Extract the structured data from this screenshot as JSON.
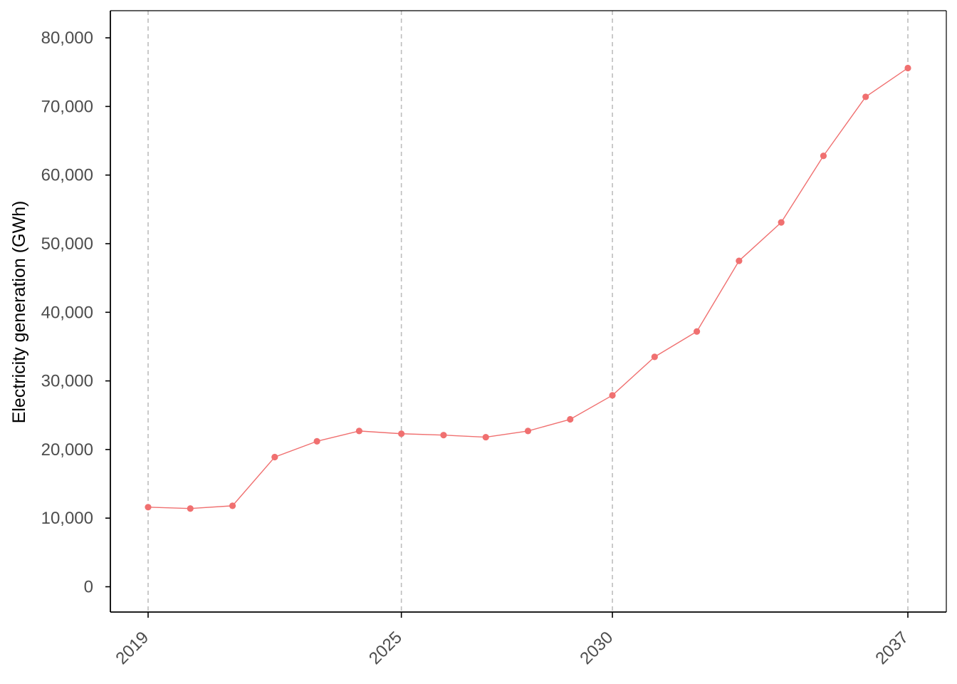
{
  "chart_data": {
    "type": "line",
    "title": "",
    "xlabel": "",
    "ylabel": "Electricity generation (GWh)",
    "x": [
      2019,
      2020,
      2021,
      2022,
      2023,
      2024,
      2025,
      2026,
      2027,
      2028,
      2029,
      2030,
      2031,
      2032,
      2033,
      2034,
      2035,
      2036,
      2037
    ],
    "series": [
      {
        "values": [
          11600,
          11400,
          11800,
          18900,
          21200,
          22700,
          22300,
          22100,
          21800,
          22700,
          24400,
          27900,
          33500,
          37200,
          47500,
          53100,
          62800,
          71400,
          75600
        ],
        "color": "#f07070"
      }
    ],
    "xlim": [
      2019,
      2037
    ],
    "ylim": [
      0,
      80000
    ],
    "x_ticks": [
      2019,
      2025,
      2030,
      2037
    ],
    "x_tick_labels": [
      "2019",
      "2025",
      "2030",
      "2037"
    ],
    "y_ticks": [
      0,
      10000,
      20000,
      30000,
      40000,
      50000,
      60000,
      70000,
      80000
    ],
    "y_tick_labels": [
      "0",
      "10,000",
      "20,000",
      "30,000",
      "40,000",
      "50,000",
      "60,000",
      "70,000",
      "80,000"
    ],
    "x_grid": "dashed vertical lines at x ticks",
    "y_grid": false,
    "legend": "none",
    "colors": {
      "series": "#f07070",
      "grid": "#bdbdbd",
      "axis": "#000000",
      "tick_text": "#4d4d4d"
    }
  }
}
